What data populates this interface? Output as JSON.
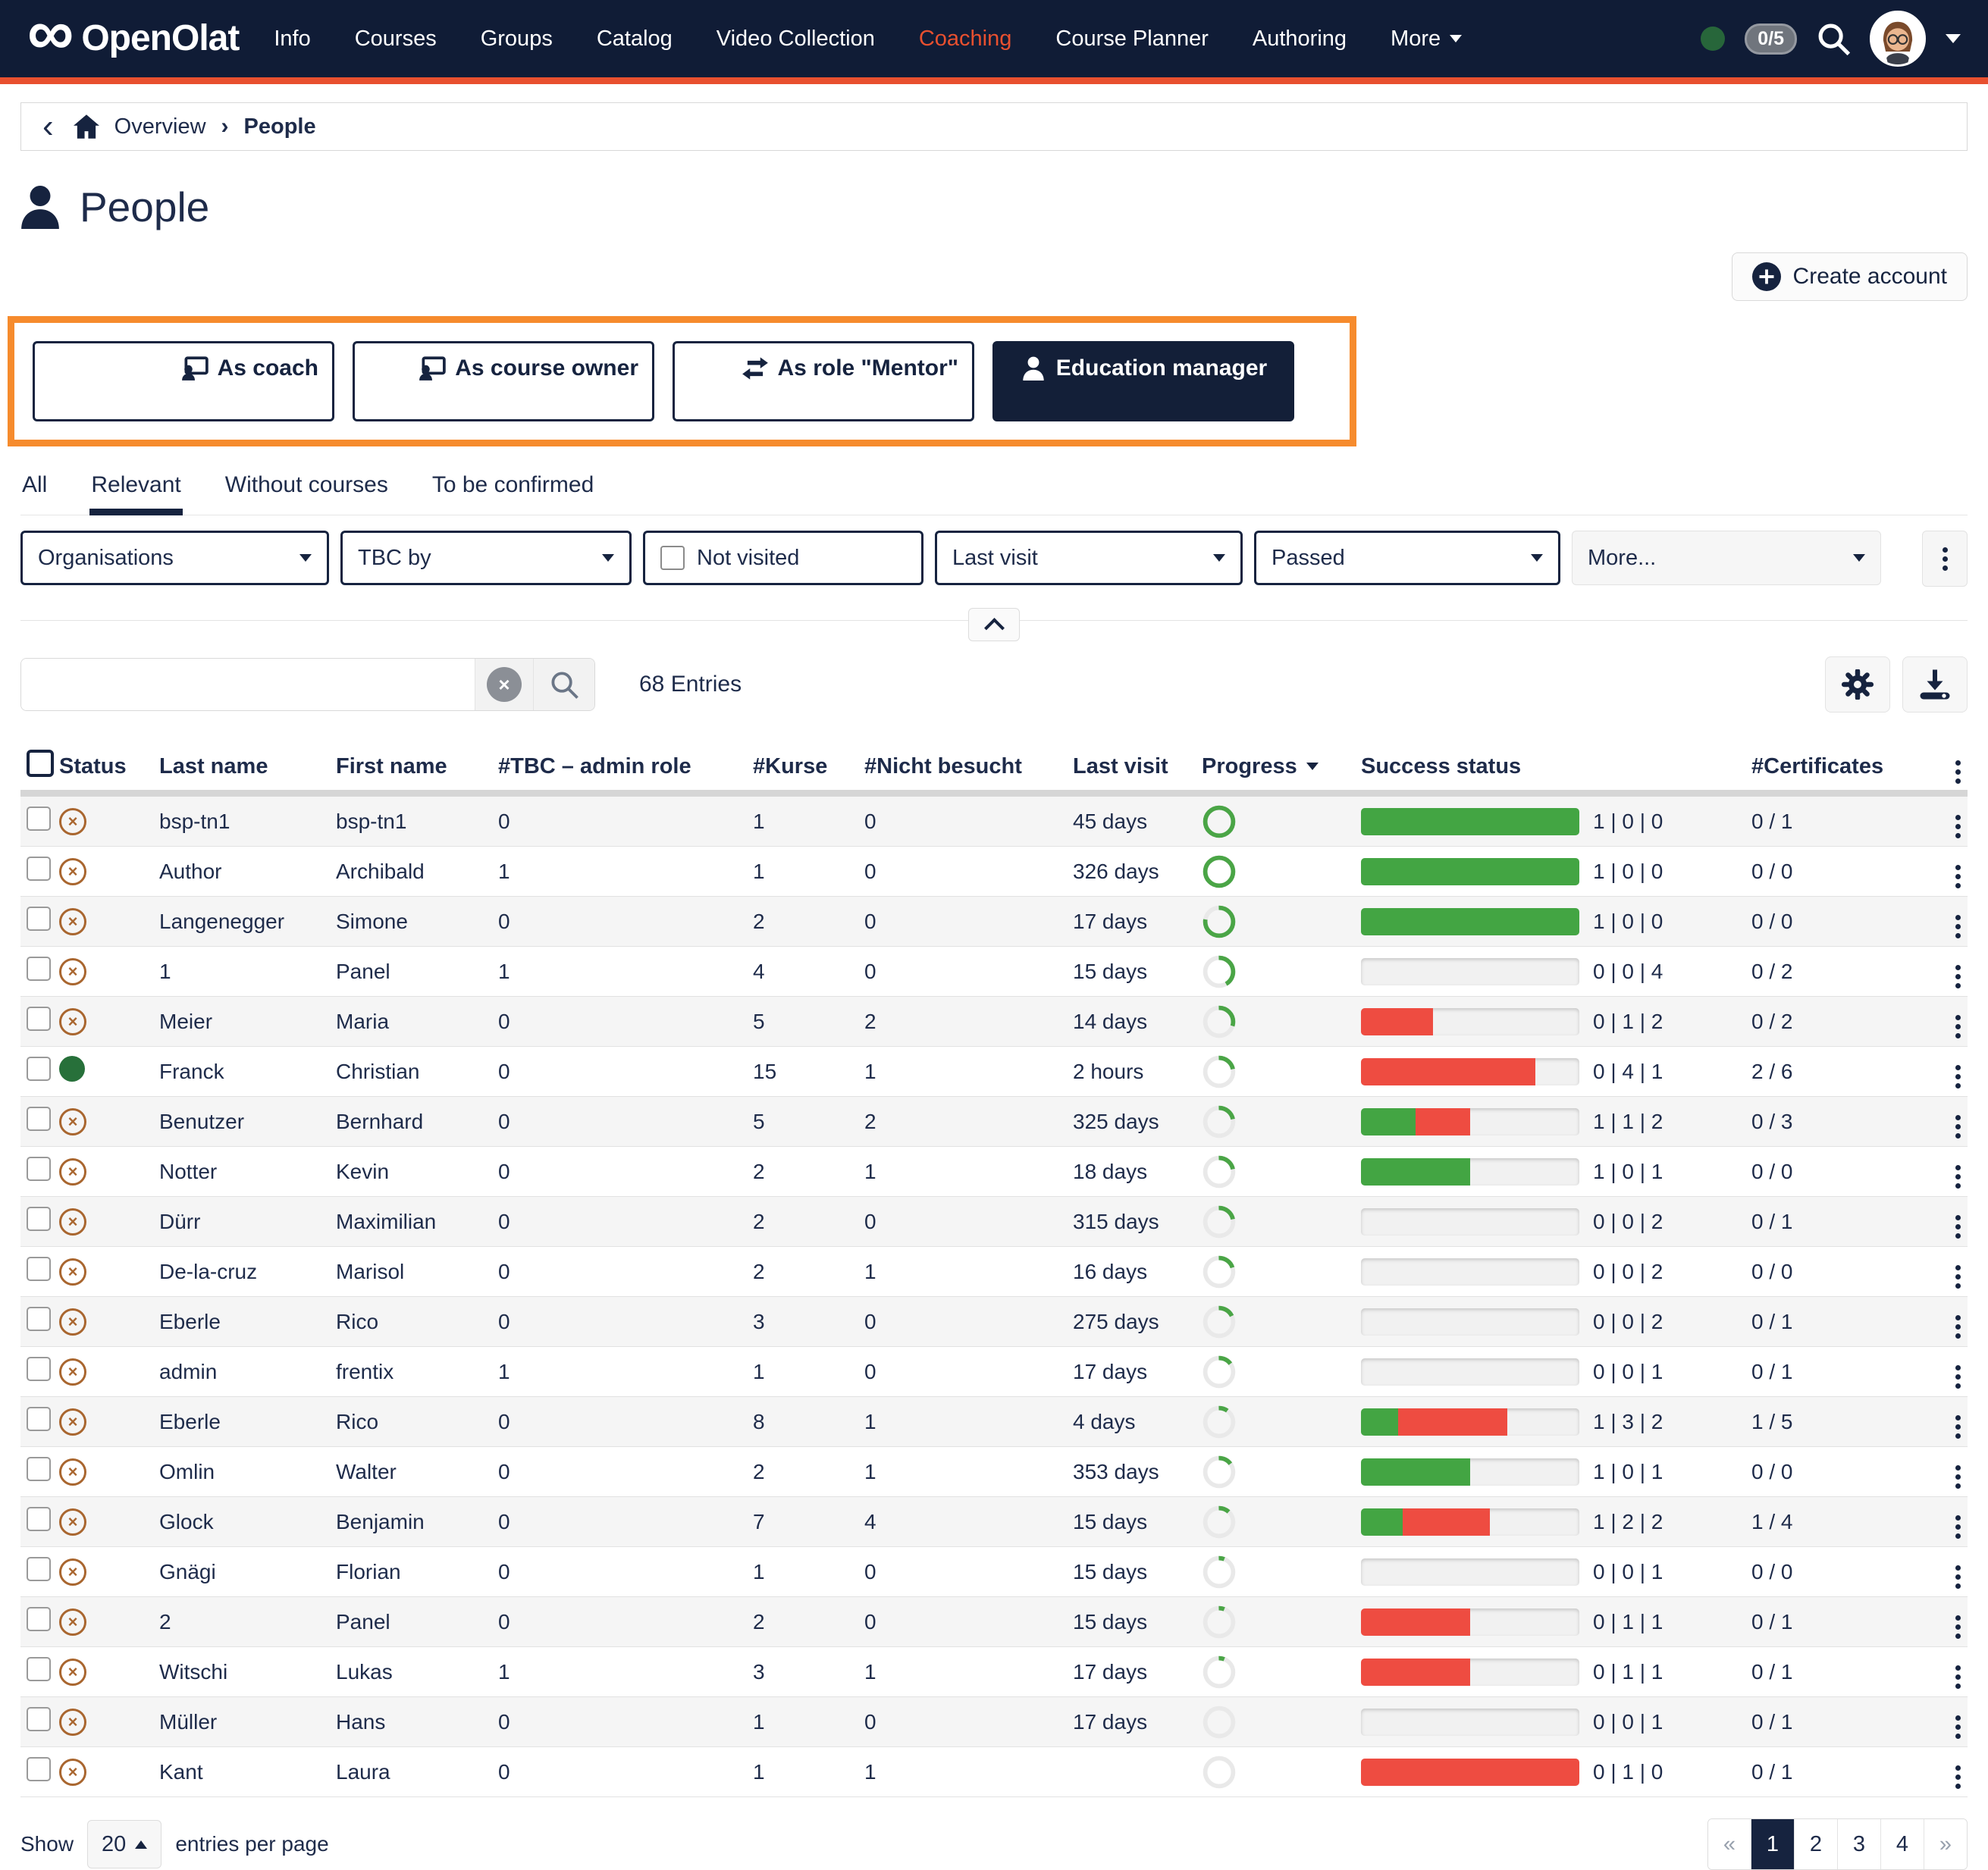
{
  "navbar": {
    "brand": "OpenOlat",
    "items": [
      {
        "label": "Info"
      },
      {
        "label": "Courses"
      },
      {
        "label": "Groups"
      },
      {
        "label": "Catalog"
      },
      {
        "label": "Video Collection"
      },
      {
        "label": "Coaching",
        "active": true
      },
      {
        "label": "Course Planner"
      },
      {
        "label": "Authoring"
      },
      {
        "label": "More",
        "caret": true
      }
    ],
    "chat_badge": "0/5"
  },
  "breadcrumb": {
    "overview": "Overview",
    "current": "People"
  },
  "page": {
    "title": "People",
    "create_account": "Create account"
  },
  "role_buttons": [
    {
      "label": "As coach",
      "icon": "coach-icon",
      "variant": "outline"
    },
    {
      "label": "As course owner",
      "icon": "course-owner-icon",
      "variant": "outline"
    },
    {
      "label": "As role \"Mentor\"",
      "icon": "swap-arrows-icon",
      "variant": "outline"
    },
    {
      "label": "Education manager",
      "icon": "person-icon",
      "variant": "solid"
    }
  ],
  "tabs": [
    {
      "label": "All"
    },
    {
      "label": "Relevant",
      "active": true
    },
    {
      "label": "Without courses"
    },
    {
      "label": "To be confirmed"
    }
  ],
  "filters": [
    {
      "label": "Organisations",
      "type": "select"
    },
    {
      "label": "TBC by",
      "type": "select"
    },
    {
      "label": "Not visited",
      "type": "checkbox"
    },
    {
      "label": "Last visit",
      "type": "select"
    },
    {
      "label": "Passed",
      "type": "select"
    },
    {
      "label": "More...",
      "type": "select",
      "muted": true
    }
  ],
  "search": {
    "entries_label": "68 Entries"
  },
  "table": {
    "headers": {
      "status": "Status",
      "last_name": "Last name",
      "first_name": "First name",
      "tbc": "#TBC – admin role",
      "kurse": "#Kurse",
      "nicht": "#Nicht besucht",
      "last_visit": "Last visit",
      "progress": "Progress",
      "success": "Success status",
      "certificates": "#Certificates"
    },
    "rows": [
      {
        "status": "inactive",
        "last_name": "bsp-tn1",
        "first_name": "bsp-tn1",
        "tbc": "0",
        "kurse": "1",
        "nicht": "0",
        "last_visit": "45 days",
        "progress": 100,
        "bar_green": 100,
        "bar_red": 0,
        "counts": "1 | 0 | 0",
        "certificates": "0 / 1"
      },
      {
        "status": "inactive",
        "last_name": "Author",
        "first_name": "Archibald",
        "tbc": "1",
        "kurse": "1",
        "nicht": "0",
        "last_visit": "326 days",
        "progress": 100,
        "bar_green": 100,
        "bar_red": 0,
        "counts": "1 | 0 | 0",
        "certificates": "0 / 0"
      },
      {
        "status": "inactive",
        "last_name": "Langenegger",
        "first_name": "Simone",
        "tbc": "0",
        "kurse": "2",
        "nicht": "0",
        "last_visit": "17 days",
        "progress": 78,
        "bar_green": 100,
        "bar_red": 0,
        "counts": "1 | 0 | 0",
        "certificates": "0 / 0"
      },
      {
        "status": "inactive",
        "last_name": "1",
        "first_name": "Panel",
        "tbc": "1",
        "kurse": "4",
        "nicht": "0",
        "last_visit": "15 days",
        "progress": 42,
        "bar_green": 0,
        "bar_red": 0,
        "counts": "0 | 0 | 4",
        "certificates": "0 / 2"
      },
      {
        "status": "inactive",
        "last_name": "Meier",
        "first_name": "Maria",
        "tbc": "0",
        "kurse": "5",
        "nicht": "2",
        "last_visit": "14 days",
        "progress": 30,
        "bar_green": 0,
        "bar_red": 33,
        "counts": "0 | 1 | 2",
        "certificates": "0 / 2"
      },
      {
        "status": "active",
        "last_name": "Franck",
        "first_name": "Christian",
        "tbc": "0",
        "kurse": "15",
        "nicht": "1",
        "last_visit": "2 hours",
        "progress": 22,
        "bar_green": 0,
        "bar_red": 80,
        "counts": "0 | 4 | 1",
        "certificates": "2 / 6"
      },
      {
        "status": "inactive",
        "last_name": "Benutzer",
        "first_name": "Bernhard",
        "tbc": "0",
        "kurse": "5",
        "nicht": "2",
        "last_visit": "325 days",
        "progress": 22,
        "bar_green": 25,
        "bar_red": 25,
        "counts": "1 | 1 | 2",
        "certificates": "0 / 3"
      },
      {
        "status": "inactive",
        "last_name": "Notter",
        "first_name": "Kevin",
        "tbc": "0",
        "kurse": "2",
        "nicht": "1",
        "last_visit": "18 days",
        "progress": 22,
        "bar_green": 50,
        "bar_red": 0,
        "counts": "1 | 0 | 1",
        "certificates": "0 / 0"
      },
      {
        "status": "inactive",
        "last_name": "Dürr",
        "first_name": "Maximilian",
        "tbc": "0",
        "kurse": "2",
        "nicht": "0",
        "last_visit": "315 days",
        "progress": 22,
        "bar_green": 0,
        "bar_red": 0,
        "counts": "0 | 0 | 2",
        "certificates": "0 / 1"
      },
      {
        "status": "inactive",
        "last_name": "De-la-cruz",
        "first_name": "Marisol",
        "tbc": "0",
        "kurse": "2",
        "nicht": "1",
        "last_visit": "16 days",
        "progress": 20,
        "bar_green": 0,
        "bar_red": 0,
        "counts": "0 | 0 | 2",
        "certificates": "0 / 0"
      },
      {
        "status": "inactive",
        "last_name": "Eberle",
        "first_name": "Rico",
        "tbc": "0",
        "kurse": "3",
        "nicht": "0",
        "last_visit": "275 days",
        "progress": 18,
        "bar_green": 0,
        "bar_red": 0,
        "counts": "0 | 0 | 2",
        "certificates": "0 / 1"
      },
      {
        "status": "inactive",
        "last_name": "admin",
        "first_name": "frentix",
        "tbc": "1",
        "kurse": "1",
        "nicht": "0",
        "last_visit": "17 days",
        "progress": 15,
        "bar_green": 0,
        "bar_red": 0,
        "counts": "0 | 0 | 1",
        "certificates": "0 / 1"
      },
      {
        "status": "inactive",
        "last_name": "Eberle",
        "first_name": "Rico",
        "tbc": "0",
        "kurse": "8",
        "nicht": "1",
        "last_visit": "4 days",
        "progress": 10,
        "bar_green": 17,
        "bar_red": 50,
        "counts": "1 | 3 | 2",
        "certificates": "1 / 5"
      },
      {
        "status": "inactive",
        "last_name": "Omlin",
        "first_name": "Walter",
        "tbc": "0",
        "kurse": "2",
        "nicht": "1",
        "last_visit": "353 days",
        "progress": 15,
        "bar_green": 50,
        "bar_red": 0,
        "counts": "1 | 0 | 1",
        "certificates": "0 / 0"
      },
      {
        "status": "inactive",
        "last_name": "Glock",
        "first_name": "Benjamin",
        "tbc": "0",
        "kurse": "7",
        "nicht": "4",
        "last_visit": "15 days",
        "progress": 12,
        "bar_green": 19,
        "bar_red": 40,
        "counts": "1 | 2 | 2",
        "certificates": "1 / 4"
      },
      {
        "status": "inactive",
        "last_name": "Gnägi",
        "first_name": "Florian",
        "tbc": "0",
        "kurse": "1",
        "nicht": "0",
        "last_visit": "15 days",
        "progress": 6,
        "bar_green": 0,
        "bar_red": 0,
        "counts": "0 | 0 | 1",
        "certificates": "0 / 0"
      },
      {
        "status": "inactive",
        "last_name": "2",
        "first_name": "Panel",
        "tbc": "0",
        "kurse": "2",
        "nicht": "0",
        "last_visit": "15 days",
        "progress": 6,
        "bar_green": 0,
        "bar_red": 50,
        "counts": "0 | 1 | 1",
        "certificates": "0 / 1"
      },
      {
        "status": "inactive",
        "last_name": "Witschi",
        "first_name": "Lukas",
        "tbc": "1",
        "kurse": "3",
        "nicht": "1",
        "last_visit": "17 days",
        "progress": 6,
        "bar_green": 0,
        "bar_red": 50,
        "counts": "0 | 1 | 1",
        "certificates": "0 / 1"
      },
      {
        "status": "inactive",
        "last_name": "Müller",
        "first_name": "Hans",
        "tbc": "0",
        "kurse": "1",
        "nicht": "0",
        "last_visit": "17 days",
        "progress": 0,
        "bar_green": 0,
        "bar_red": 0,
        "counts": "0 | 0 | 1",
        "certificates": "0 / 1"
      },
      {
        "status": "inactive",
        "last_name": "Kant",
        "first_name": "Laura",
        "tbc": "0",
        "kurse": "1",
        "nicht": "1",
        "last_visit": "",
        "progress": 0,
        "bar_green": 0,
        "bar_red": 100,
        "counts": "0 | 1 | 0",
        "certificates": "0 / 1"
      }
    ]
  },
  "footer": {
    "show_label": "Show",
    "page_size": "20",
    "entries_label": "entries per page",
    "pagination": [
      {
        "label": "«",
        "type": "nav"
      },
      {
        "label": "1",
        "active": true
      },
      {
        "label": "2"
      },
      {
        "label": "3"
      },
      {
        "label": "4"
      },
      {
        "label": "»",
        "type": "nav"
      }
    ]
  },
  "colors": {
    "accent": "#e8502f",
    "navy": "#16233f",
    "green": "#43a543",
    "red": "#ee4c41",
    "annotation_orange": "#f68b2d",
    "status_inactive": "#a9662f",
    "status_active": "#27703a"
  }
}
